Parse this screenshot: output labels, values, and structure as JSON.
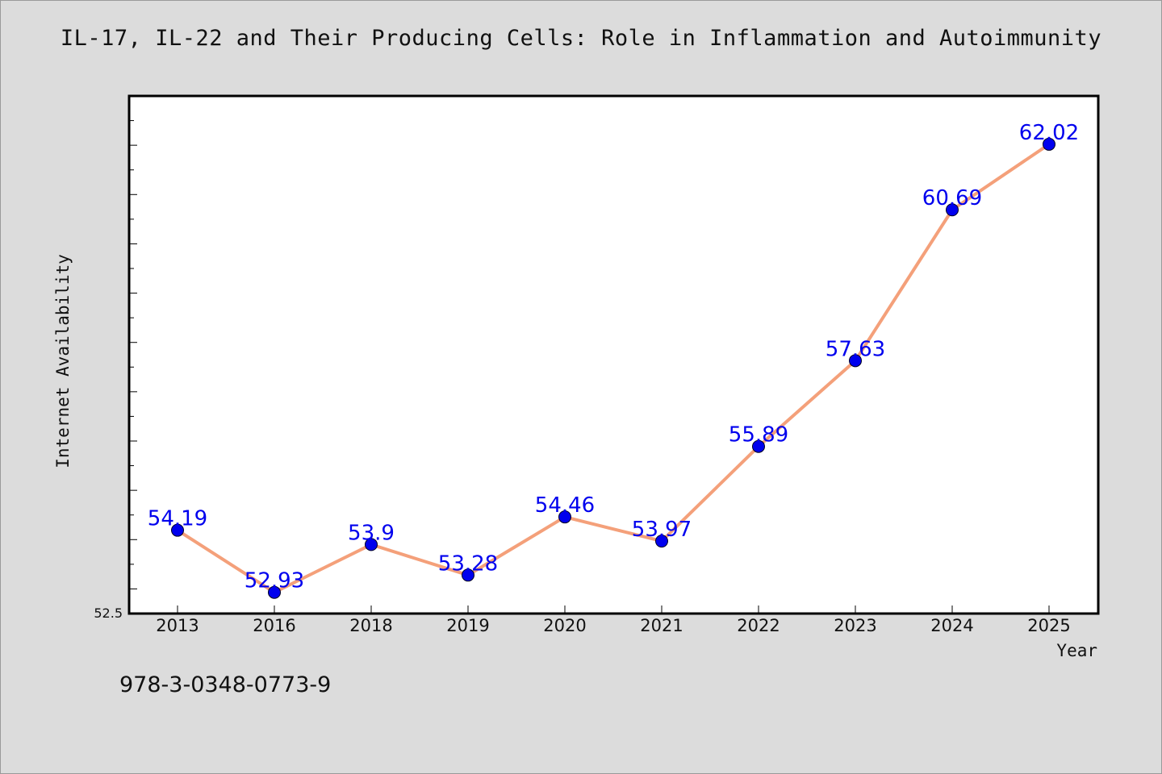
{
  "chart_data": {
    "type": "line",
    "title": "IL-17, IL-22 and Their Producing Cells: Role in Inflammation and Autoimmunity",
    "xlabel": "Year",
    "ylabel": "Internet Availability",
    "categories": [
      "2013",
      "2016",
      "2018",
      "2019",
      "2020",
      "2021",
      "2022",
      "2023",
      "2024",
      "2025"
    ],
    "series": [
      {
        "values": [
          54.19,
          52.93,
          53.9,
          53.28,
          54.46,
          53.97,
          55.89,
          57.63,
          60.69,
          62.02
        ],
        "data_labels": [
          "54.19",
          "52.93",
          "53.9",
          "53.28",
          "54.46",
          "53.97",
          "55.89",
          "57.63",
          "60.69",
          "62.02"
        ]
      }
    ],
    "ylim": [
      52.5,
      63.0
    ],
    "y_tick_label": "52.5",
    "grid": false,
    "colors": {
      "line": "#f4a07a",
      "marker": "#0000ee",
      "data_label": "#0000ee",
      "background": "#dcdcdc",
      "plot_background": "#ffffff"
    }
  },
  "footer": {
    "isbn": "978-3-0348-0773-9"
  }
}
